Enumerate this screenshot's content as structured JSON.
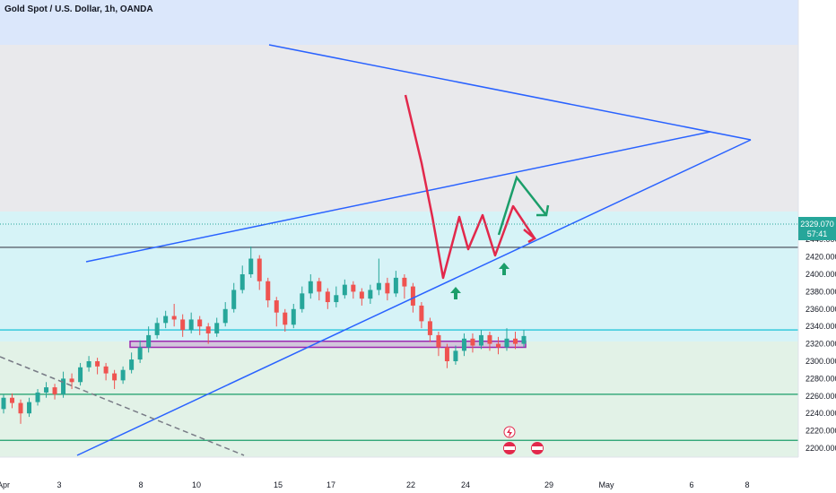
{
  "chart_data": {
    "type": "candlestick",
    "title": "Gold Spot / U.S. Dollar, 1h, OANDA",
    "ylim": [
      2195,
      2450
    ],
    "y_ticks": [
      "2440.000",
      "2420.000",
      "2400.000",
      "2380.000",
      "2360.000",
      "2340.000",
      "2320.000",
      "2300.000",
      "2280.000",
      "2260.000",
      "2240.000",
      "2220.000",
      "2200.000"
    ],
    "x_ticks": [
      "Apr",
      "3",
      "8",
      "10",
      "15",
      "17",
      "22",
      "24",
      "29",
      "May",
      "6",
      "8"
    ],
    "price_label": {
      "price": "2329.070",
      "countdown": "57:41",
      "color": "#26a69a"
    },
    "colors": {
      "up": "#26a69a",
      "down": "#ef5350",
      "trendline": "#2962ff",
      "zigzag": "#e2284b",
      "projection": "#1b9e6a",
      "zone": "#9c27b0"
    },
    "levels": [
      2431,
      2336,
      2262,
      2209
    ],
    "zone": {
      "top": 2323,
      "bottom": 2316
    },
    "candles": [
      [
        2245,
        2258,
        2240,
        2262
      ],
      [
        2258,
        2252,
        2246,
        2263
      ],
      [
        2252,
        2240,
        2228,
        2256
      ],
      [
        2240,
        2253,
        2236,
        2258
      ],
      [
        2253,
        2264,
        2249,
        2268
      ],
      [
        2264,
        2270,
        2258,
        2276
      ],
      [
        2270,
        2262,
        2256,
        2274
      ],
      [
        2262,
        2280,
        2258,
        2288
      ],
      [
        2280,
        2276,
        2268,
        2286
      ],
      [
        2276,
        2293,
        2272,
        2298
      ],
      [
        2293,
        2300,
        2288,
        2306
      ],
      [
        2300,
        2294,
        2285,
        2304
      ],
      [
        2294,
        2286,
        2278,
        2298
      ],
      [
        2286,
        2278,
        2268,
        2290
      ],
      [
        2278,
        2290,
        2274,
        2294
      ],
      [
        2290,
        2302,
        2286,
        2310
      ],
      [
        2302,
        2316,
        2298,
        2324
      ],
      [
        2316,
        2330,
        2310,
        2340
      ],
      [
        2330,
        2344,
        2326,
        2350
      ],
      [
        2344,
        2352,
        2338,
        2358
      ],
      [
        2352,
        2348,
        2340,
        2366
      ],
      [
        2348,
        2336,
        2328,
        2354
      ],
      [
        2336,
        2348,
        2332,
        2356
      ],
      [
        2348,
        2340,
        2330,
        2352
      ],
      [
        2340,
        2332,
        2320,
        2344
      ],
      [
        2332,
        2344,
        2328,
        2350
      ],
      [
        2344,
        2360,
        2340,
        2368
      ],
      [
        2360,
        2382,
        2356,
        2390
      ],
      [
        2382,
        2400,
        2378,
        2410
      ],
      [
        2400,
        2418,
        2396,
        2432
      ],
      [
        2418,
        2392,
        2382,
        2422
      ],
      [
        2392,
        2370,
        2362,
        2396
      ],
      [
        2370,
        2356,
        2340,
        2374
      ],
      [
        2356,
        2342,
        2334,
        2360
      ],
      [
        2342,
        2360,
        2338,
        2366
      ],
      [
        2360,
        2378,
        2356,
        2386
      ],
      [
        2378,
        2392,
        2372,
        2400
      ],
      [
        2392,
        2380,
        2370,
        2396
      ],
      [
        2380,
        2368,
        2360,
        2384
      ],
      [
        2368,
        2376,
        2362,
        2386
      ],
      [
        2376,
        2388,
        2372,
        2394
      ],
      [
        2388,
        2380,
        2372,
        2392
      ],
      [
        2380,
        2372,
        2364,
        2384
      ],
      [
        2372,
        2382,
        2366,
        2388
      ],
      [
        2382,
        2390,
        2376,
        2418
      ],
      [
        2390,
        2378,
        2370,
        2396
      ],
      [
        2378,
        2396,
        2374,
        2404
      ],
      [
        2396,
        2386,
        2372,
        2400
      ],
      [
        2386,
        2364,
        2356,
        2390
      ],
      [
        2364,
        2346,
        2338,
        2368
      ],
      [
        2346,
        2330,
        2322,
        2350
      ],
      [
        2330,
        2316,
        2306,
        2334
      ],
      [
        2316,
        2300,
        2292,
        2320
      ],
      [
        2300,
        2312,
        2296,
        2318
      ],
      [
        2312,
        2326,
        2306,
        2332
      ],
      [
        2326,
        2318,
        2310,
        2332
      ],
      [
        2318,
        2330,
        2314,
        2336
      ],
      [
        2330,
        2320,
        2312,
        2334
      ],
      [
        2320,
        2316,
        2308,
        2328
      ],
      [
        2316,
        2326,
        2312,
        2338
      ],
      [
        2326,
        2320,
        2314,
        2334
      ],
      [
        2320,
        2329,
        2316,
        2336
      ]
    ]
  }
}
